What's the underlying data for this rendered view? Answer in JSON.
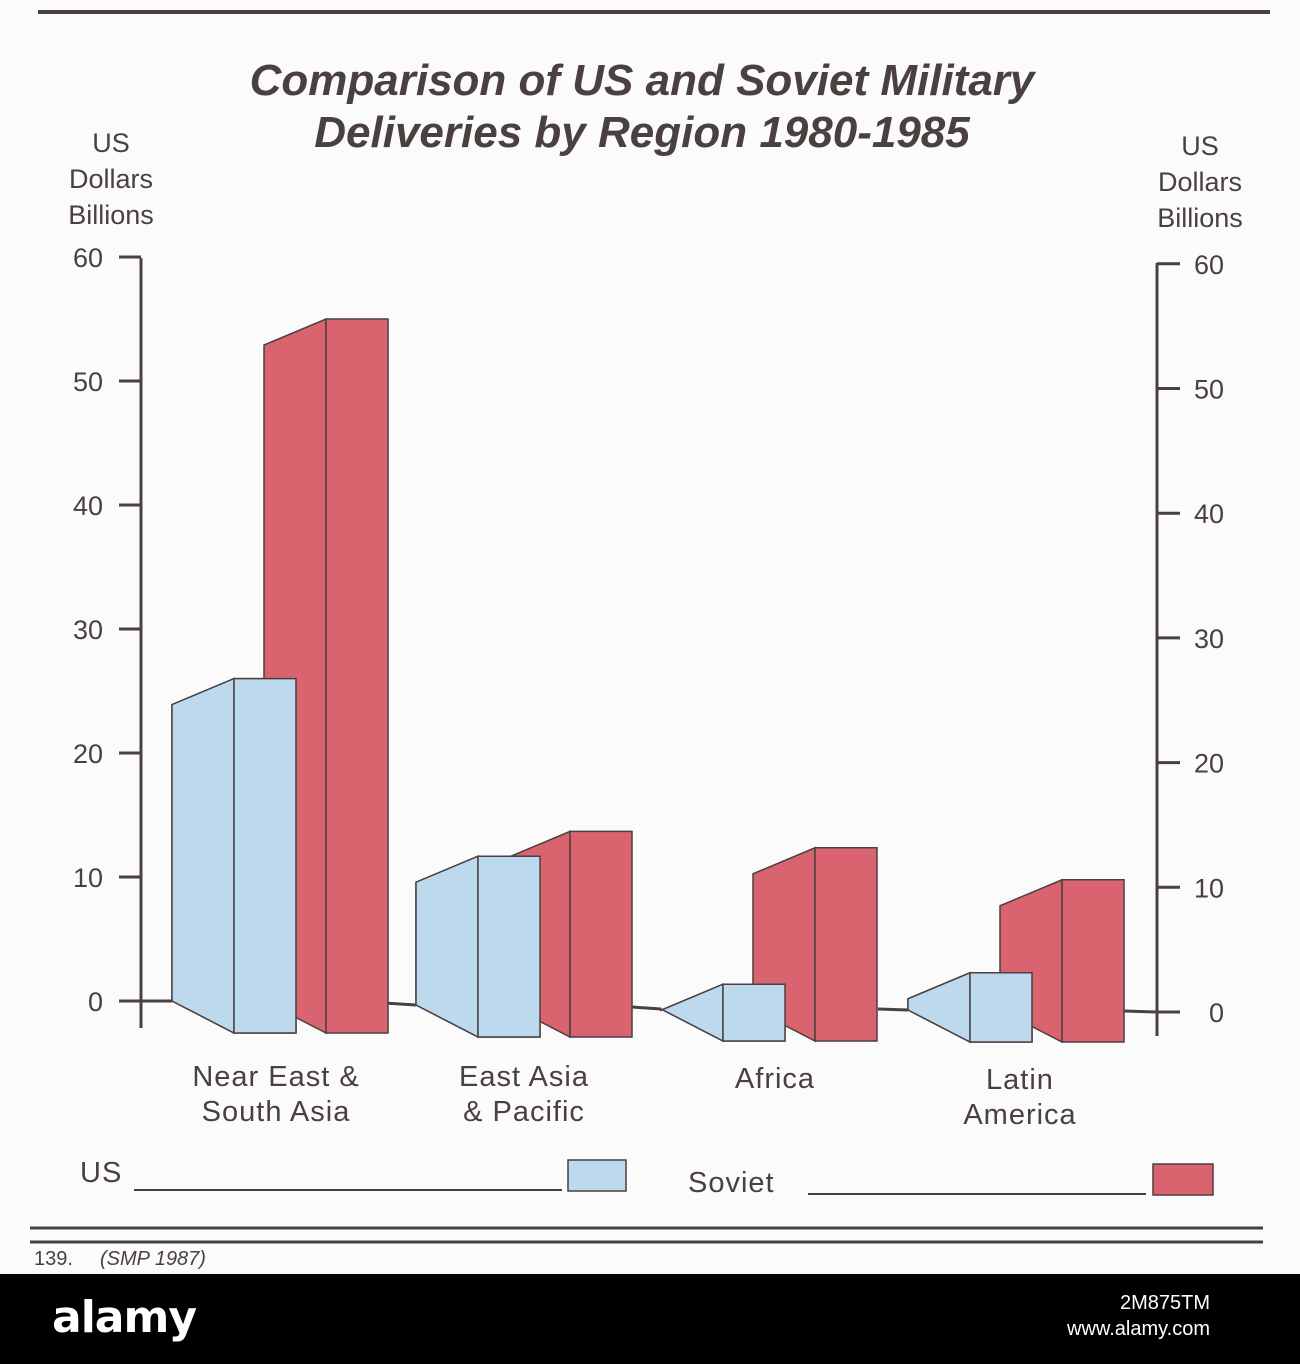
{
  "chart_data": {
    "type": "bar",
    "title": "Comparison of US and Soviet Military Deliveries by Region 1980-1985",
    "title_lines": [
      "Comparison of US and Soviet Military",
      "Deliveries by Region 1980-1985"
    ],
    "ylabel_left": [
      "US",
      "Dollars",
      "Billions"
    ],
    "ylabel_right": [
      "US",
      "Dollars",
      "Billions"
    ],
    "ylim": [
      0,
      60
    ],
    "yticks": [
      0,
      10,
      20,
      30,
      40,
      50,
      60
    ],
    "categories": [
      [
        "Near East &",
        "South Asia"
      ],
      [
        "East Asia",
        "& Pacific"
      ],
      [
        "Africa"
      ],
      [
        "Latin",
        "America"
      ]
    ],
    "series": [
      {
        "name": "US",
        "color": "#bcd9ee",
        "values": [
          26,
          12,
          2,
          3
        ]
      },
      {
        "name": "Soviet",
        "color": "#d9646f",
        "values": [
          55,
          14,
          13,
          10.5
        ]
      }
    ],
    "legend_placement": "bottom",
    "grid": false
  },
  "footer": {
    "number": "139.",
    "source": "(SMP 1987)"
  },
  "watermark": {
    "logo": "alamy",
    "image_id": "2M875TM",
    "site": "www.alamy.com"
  }
}
